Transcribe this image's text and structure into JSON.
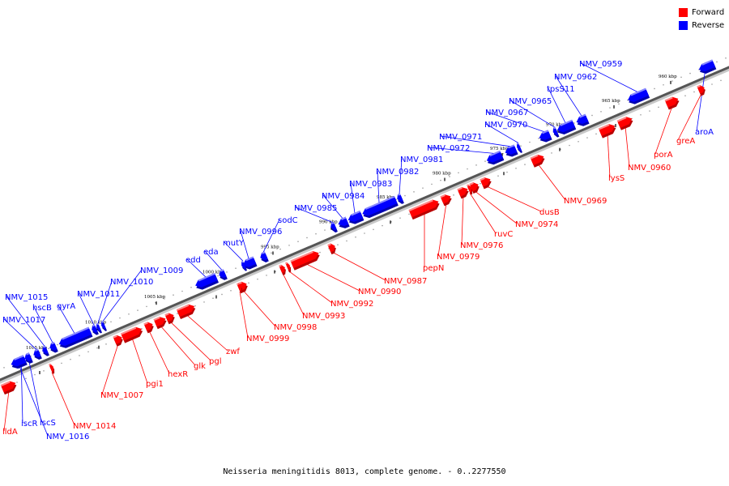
{
  "legend": {
    "forward_label": "Forward",
    "reverse_label": "Reverse",
    "forward_color": "#ff0000",
    "reverse_color": "#0000ff"
  },
  "caption": "Neisseria meningitidis 8013, complete genome. - 0..2277550",
  "ticks": [
    "960 kbp",
    "965 kbp",
    "970 kbp",
    "975 kbp",
    "980 kbp",
    "985 kbp",
    "990 kbp",
    "995 kbp",
    "1000 kbp",
    "1005 kbp",
    "1010 kbp",
    "1015 kbp"
  ],
  "reverse_genes": [
    "aroA",
    "NMV_0959",
    "NMV_0962",
    "tpsS11",
    "NMV_0965",
    "NMV_0967",
    "NMV_0970",
    "NMV_0971",
    "NMV_0972",
    "NMV_0981",
    "NMV_0982",
    "NMV_0983",
    "NMV_0984",
    "NMV_0985",
    "sodC",
    "NMV_0996",
    "mutY",
    "eda",
    "edd",
    "NMV_1009",
    "NMV_1010",
    "NMV_1011",
    "gyrA",
    "hscB",
    "NMV_1015",
    "NMV_1017",
    "iscS",
    "iscR",
    "NMV_1016"
  ],
  "forward_genes": [
    "greA",
    "porA",
    "NMV_0960",
    "lysS",
    "NMV_0969",
    "dusB",
    "NMV_0974",
    "ruvC",
    "NMV_0976",
    "NMV_0979",
    "pepN",
    "NMV_0987",
    "NMV_0990",
    "NMV_0992",
    "NMV_0993",
    "NMV_0998",
    "NMV_0999",
    "zwf",
    "pgl",
    "glk",
    "hexR",
    "pgi1",
    "NMV_1007",
    "NMV_1014",
    "lldA"
  ]
}
